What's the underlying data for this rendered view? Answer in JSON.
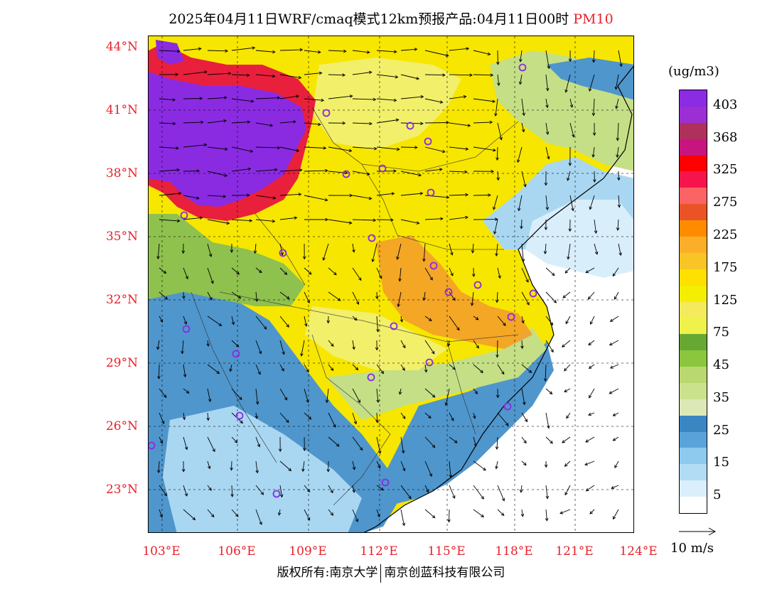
{
  "title": {
    "main": "2025年04月11日WRF/cmaq模式12km预报产品:04月11日00时",
    "pollutant": "PM10"
  },
  "map": {
    "lat_labels": [
      "44°N",
      "41°N",
      "38°N",
      "35°N",
      "32°N",
      "29°N",
      "26°N",
      "23°N"
    ],
    "lon_labels": [
      "103°E",
      "106°E",
      "109°E",
      "112°E",
      "115°E",
      "118°E",
      "121°E",
      "124°E"
    ],
    "colors": {
      "very_high": "#8a2be2",
      "high_red": "#e8203c",
      "orange": "#f39a2c",
      "yellow": "#f7e600",
      "light_yellow": "#f2ef6a",
      "green": "#8fc14e",
      "light_green": "#c5df86",
      "blue": "#4f96cc",
      "light_blue": "#a9d7f2",
      "pale_blue": "#d9eefb",
      "sea": "#ffffff"
    }
  },
  "legend": {
    "units": "(ug/m3)",
    "labels": [
      "403",
      "368",
      "325",
      "275",
      "225",
      "175",
      "125",
      "75",
      "45",
      "35",
      "25",
      "15",
      "5"
    ],
    "colors": [
      "#8b2be2",
      "#9c2fd3",
      "#b0305c",
      "#c8147e",
      "#ff0000",
      "#f5144c",
      "#fa6464",
      "#e95326",
      "#ff8c00",
      "#fbaf28",
      "#f9c425",
      "#ffe000",
      "#f4ee00",
      "#f5e95c",
      "#eef24a",
      "#67a832",
      "#8cc63e",
      "#bad870",
      "#cbe28d",
      "#dce9b7",
      "#3a86c2",
      "#5aa3da",
      "#8ecaee",
      "#b1dcf4",
      "#daeffb",
      "#ffffff"
    ]
  },
  "wind_vector": {
    "label": "10 m/s"
  },
  "credit": {
    "left": "版权所有:南京大学",
    "right": "南京创蓝科技有限公司"
  }
}
